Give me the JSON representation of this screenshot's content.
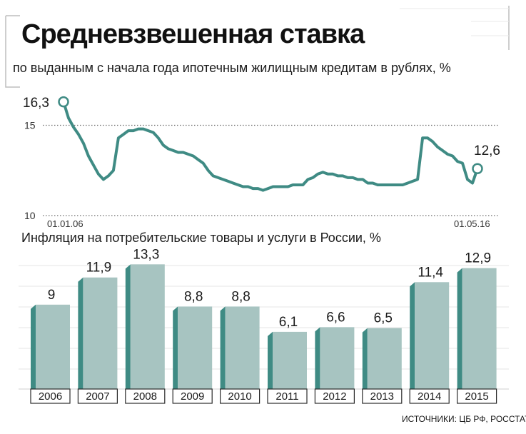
{
  "header": {
    "title": "Средневзвешенная ставка",
    "subtitle": "по выданным с начала года ипотечным жилищным кредитам в рублях, %"
  },
  "colors": {
    "line": "#3f8b84",
    "bar_face": "#a7c4c1",
    "bar_side": "#3f8b84",
    "grid": "#e4e4e4",
    "border": "#bdbdbd"
  },
  "chart_data": [
    {
      "type": "line",
      "title": "Средневзвешенная ставка",
      "subtitle": "по выданным с начала года ипотечным жилищным кредитам в рублях, %",
      "x_labels": {
        "start": "01.01.06",
        "end": "01.05.16"
      },
      "y_ticks": [
        "15",
        "10"
      ],
      "ylim": [
        10,
        16.8
      ],
      "start_label": "16,3",
      "end_label": "12,6",
      "grid": false,
      "series": [
        {
          "values": [
            16.3,
            15.4,
            14.9,
            14.5,
            14.0,
            13.3,
            12.8,
            12.3,
            12.0,
            12.2,
            12.5,
            14.3,
            14.5,
            14.7,
            14.7,
            14.8,
            14.8,
            14.7,
            14.6,
            14.3,
            13.9,
            13.7,
            13.6,
            13.5,
            13.5,
            13.4,
            13.3,
            13.1,
            12.9,
            12.5,
            12.2,
            12.1,
            12.0,
            11.9,
            11.8,
            11.7,
            11.6,
            11.6,
            11.5,
            11.5,
            11.4,
            11.5,
            11.6,
            11.6,
            11.6,
            11.6,
            11.7,
            11.7,
            11.7,
            12.0,
            12.1,
            12.3,
            12.4,
            12.3,
            12.3,
            12.2,
            12.2,
            12.1,
            12.1,
            12.0,
            12.0,
            11.8,
            11.8,
            11.7,
            11.7,
            11.7,
            11.7,
            11.7,
            11.7,
            11.8,
            11.9,
            12.0,
            14.3,
            14.3,
            14.1,
            13.8,
            13.6,
            13.4,
            13.3,
            13.0,
            12.9,
            12.0,
            11.8,
            12.6
          ]
        }
      ]
    },
    {
      "type": "bar",
      "title": "Инфляция на потребительские товары и услуги в России, %",
      "categories": [
        "2006",
        "2007",
        "2008",
        "2009",
        "2010",
        "2011",
        "2012",
        "2013",
        "2014",
        "2015"
      ],
      "values": [
        9,
        11.9,
        13.3,
        8.8,
        8.8,
        6.1,
        6.6,
        6.5,
        11.4,
        12.9
      ],
      "value_labels": [
        "9",
        "11,9",
        "13,3",
        "8,8",
        "8,8",
        "6,1",
        "6,6",
        "6,5",
        "11,4",
        "12,9"
      ],
      "ylim": [
        0,
        15
      ],
      "grid": true
    }
  ],
  "footer": {
    "source": "ИСТОЧНИКИ: ЦБ РФ, РОССТАТ"
  }
}
